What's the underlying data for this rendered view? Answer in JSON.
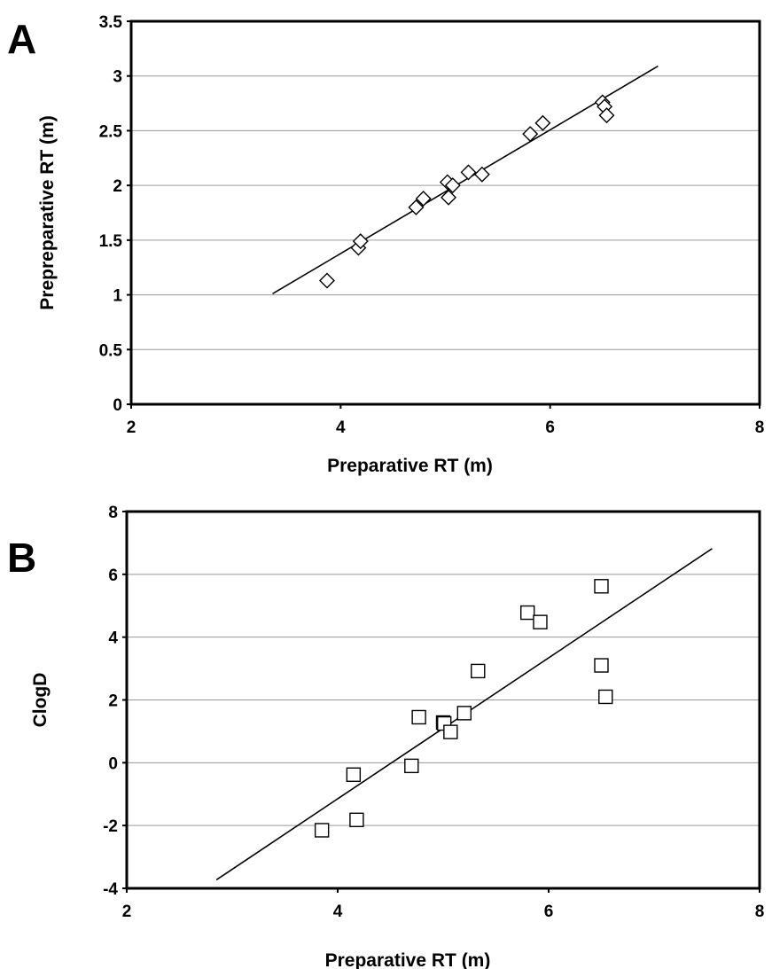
{
  "chart_data": [
    {
      "type": "scatter",
      "panel_label": "A",
      "xlabel": "Preparative RT (m)",
      "ylabel": "Prepreparative RT (m)",
      "xlim": [
        2,
        8
      ],
      "ylim": [
        0,
        3.5
      ],
      "x_ticks": [
        "2",
        "4",
        "6",
        "8"
      ],
      "y_ticks": [
        "0",
        "0.5",
        "1",
        "1.5",
        "2",
        "2.5",
        "3",
        "3.5"
      ],
      "grid": "horizontal",
      "marker": "diamond",
      "series": [
        {
          "points": [
            {
              "x": 3.87,
              "y": 1.13
            },
            {
              "x": 4.17,
              "y": 1.43
            },
            {
              "x": 4.19,
              "y": 1.49
            },
            {
              "x": 4.72,
              "y": 1.8
            },
            {
              "x": 4.79,
              "y": 1.88
            },
            {
              "x": 5.02,
              "y": 2.03
            },
            {
              "x": 5.03,
              "y": 1.89
            },
            {
              "x": 5.07,
              "y": 2.0
            },
            {
              "x": 5.22,
              "y": 2.12
            },
            {
              "x": 5.35,
              "y": 2.1
            },
            {
              "x": 5.81,
              "y": 2.47
            },
            {
              "x": 5.93,
              "y": 2.57
            },
            {
              "x": 6.5,
              "y": 2.76
            },
            {
              "x": 6.52,
              "y": 2.72
            },
            {
              "x": 6.54,
              "y": 2.64
            }
          ]
        }
      ],
      "trendline": {
        "x": [
          3.35,
          7.03
        ],
        "y": [
          1.01,
          3.09
        ]
      }
    },
    {
      "type": "scatter",
      "panel_label": "B",
      "xlabel": "Preparative RT (m)",
      "ylabel": "ClogD",
      "xlim": [
        2,
        8
      ],
      "ylim": [
        -4,
        8
      ],
      "x_ticks": [
        "2",
        "4",
        "6",
        "8"
      ],
      "y_ticks": [
        "-4",
        "-2",
        "0",
        "2",
        "4",
        "6",
        "8"
      ],
      "grid": "horizontal",
      "marker": "square",
      "series": [
        {
          "points": [
            {
              "x": 3.85,
              "y": -2.15
            },
            {
              "x": 4.15,
              "y": -0.38
            },
            {
              "x": 4.18,
              "y": -1.82
            },
            {
              "x": 4.7,
              "y": -0.1
            },
            {
              "x": 4.77,
              "y": 1.45
            },
            {
              "x": 5.0,
              "y": 1.28
            },
            {
              "x": 5.01,
              "y": 1.25
            },
            {
              "x": 5.07,
              "y": 0.98
            },
            {
              "x": 5.2,
              "y": 1.58
            },
            {
              "x": 5.33,
              "y": 2.92
            },
            {
              "x": 5.8,
              "y": 4.78
            },
            {
              "x": 5.92,
              "y": 4.48
            },
            {
              "x": 6.5,
              "y": 5.62
            },
            {
              "x": 6.5,
              "y": 3.1
            },
            {
              "x": 6.54,
              "y": 2.1
            }
          ]
        }
      ],
      "trendline": {
        "x": [
          2.85,
          7.55
        ],
        "y": [
          -3.73,
          6.82
        ]
      }
    }
  ]
}
